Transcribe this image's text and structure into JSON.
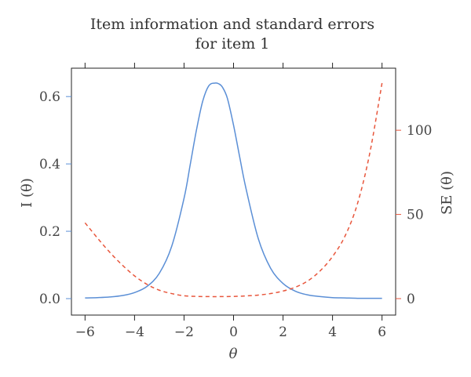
{
  "chart_data": {
    "type": "line",
    "title": [
      "Item information and standard errors",
      "for item 1"
    ],
    "xlabel": "θ",
    "ylabel_left": "I (θ)",
    "ylabel_right": "SE (θ)",
    "xlim": [
      -6,
      6
    ],
    "ylim_left": [
      0,
      0.64
    ],
    "ylim_right": [
      0,
      128
    ],
    "x_ticks": [
      -6,
      -4,
      -2,
      0,
      2,
      4,
      6
    ],
    "x_tick_labels": [
      "−6",
      "−4",
      "−2",
      "0",
      "2",
      "4",
      "6"
    ],
    "y_left_ticks": [
      0.0,
      0.2,
      0.4,
      0.6
    ],
    "y_left_tick_labels": [
      "0.0",
      "0.2",
      "0.4",
      "0.6"
    ],
    "y_right_ticks": [
      0,
      50,
      100
    ],
    "y_right_tick_labels": [
      "0",
      "50",
      "100"
    ],
    "grid": false,
    "series": [
      {
        "axis": "left",
        "style": "solid",
        "color": "#5b8fd6",
        "x": [
          -6,
          -5.5,
          -5,
          -4.5,
          -4,
          -3.5,
          -3,
          -2.5,
          -2,
          -1.75,
          -1.5,
          -1.25,
          -1,
          -0.75,
          -0.6,
          -0.45,
          -0.25,
          0,
          0.25,
          0.5,
          1,
          1.5,
          2,
          2.5,
          3,
          3.5,
          4,
          4.5,
          5,
          5.5,
          6
        ],
        "y": [
          0.002,
          0.003,
          0.005,
          0.009,
          0.018,
          0.036,
          0.075,
          0.155,
          0.298,
          0.398,
          0.5,
          0.585,
          0.632,
          0.64,
          0.638,
          0.628,
          0.595,
          0.515,
          0.42,
          0.328,
          0.178,
          0.09,
          0.045,
          0.022,
          0.011,
          0.006,
          0.003,
          0.002,
          0.001,
          0.001,
          0.001
        ]
      },
      {
        "axis": "right",
        "style": "dashed",
        "color": "#e8563c",
        "x": [
          -6,
          -5.5,
          -5,
          -4.5,
          -4,
          -3.5,
          -3,
          -2.5,
          -2,
          -1.5,
          -1,
          -0.5,
          0,
          0.5,
          1,
          1.5,
          2,
          2.5,
          3,
          3.5,
          4,
          4.5,
          5,
          5.5,
          6
        ],
        "y": [
          45,
          36,
          27.5,
          20,
          13.5,
          8.5,
          5,
          3,
          1.7,
          1.3,
          1.2,
          1.2,
          1.3,
          1.6,
          2.1,
          3,
          4.5,
          6.8,
          10.5,
          16.5,
          25,
          37,
          56,
          86,
          128
        ]
      }
    ]
  }
}
